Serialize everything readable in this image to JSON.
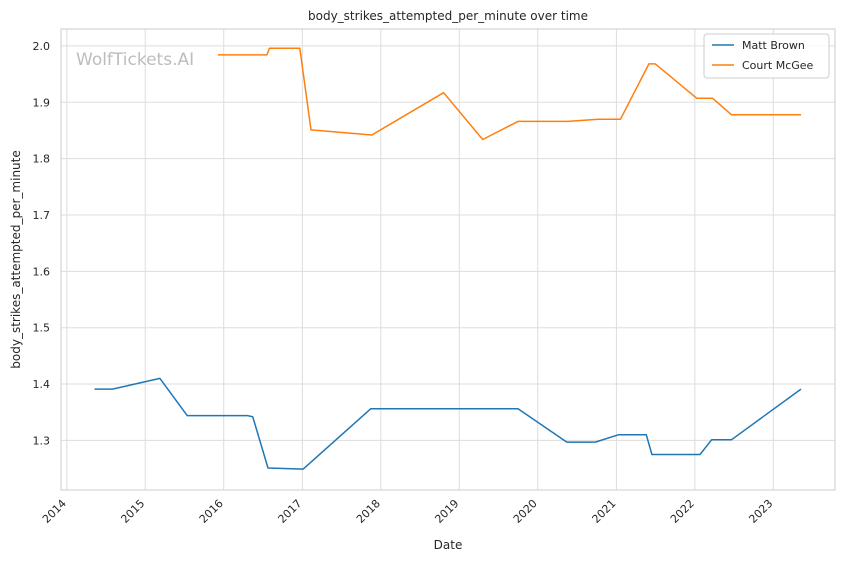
{
  "chart_data": {
    "type": "line",
    "title": "body_strikes_attempted_per_minute over time",
    "xlabel": "Date",
    "ylabel": "body_strikes_attempted_per_minute",
    "watermark": "WolfTickets.AI",
    "x_ticks": [
      "2014",
      "2015",
      "2016",
      "2017",
      "2018",
      "2019",
      "2020",
      "2021",
      "2022",
      "2023"
    ],
    "y_ticks": [
      "1.3",
      "1.4",
      "1.5",
      "1.6",
      "1.7",
      "1.8",
      "1.9",
      "2.0"
    ],
    "xlim": [
      "2013-12-05",
      "2023-10-15"
    ],
    "ylim": [
      1.212,
      2.03
    ],
    "grid": true,
    "legend_position": "top-right",
    "series": [
      {
        "name": "Matt Brown",
        "color": "#1f77b4",
        "points": [
          [
            "2014-05-10",
            1.391
          ],
          [
            "2014-08-01",
            1.391
          ],
          [
            "2015-03-10",
            1.41
          ],
          [
            "2015-07-15",
            1.344
          ],
          [
            "2016-04-20",
            1.344
          ],
          [
            "2016-05-15",
            1.342
          ],
          [
            "2016-07-25",
            1.251
          ],
          [
            "2017-01-05",
            1.249
          ],
          [
            "2017-11-15",
            1.356
          ],
          [
            "2019-10-01",
            1.356
          ],
          [
            "2019-12-10",
            1.338
          ],
          [
            "2020-05-15",
            1.297
          ],
          [
            "2020-09-25",
            1.297
          ],
          [
            "2021-01-10",
            1.31
          ],
          [
            "2021-05-20",
            1.31
          ],
          [
            "2021-06-15",
            1.275
          ],
          [
            "2022-01-25",
            1.275
          ],
          [
            "2022-03-20",
            1.301
          ],
          [
            "2022-06-20",
            1.301
          ],
          [
            "2023-05-10",
            1.391
          ]
        ]
      },
      {
        "name": "Court McGee",
        "color": "#ff7f0e",
        "points": [
          [
            "2015-12-05",
            1.984
          ],
          [
            "2016-07-20",
            1.984
          ],
          [
            "2016-08-01",
            1.996
          ],
          [
            "2016-12-20",
            1.996
          ],
          [
            "2017-02-10",
            1.851
          ],
          [
            "2017-11-20",
            1.842
          ],
          [
            "2018-10-20",
            1.917
          ],
          [
            "2019-04-20",
            1.834
          ],
          [
            "2019-10-01",
            1.866
          ],
          [
            "2020-05-20",
            1.866
          ],
          [
            "2020-10-10",
            1.87
          ],
          [
            "2021-01-20",
            1.87
          ],
          [
            "2021-06-01",
            1.968
          ],
          [
            "2021-07-01",
            1.968
          ],
          [
            "2022-01-10",
            1.907
          ],
          [
            "2022-03-25",
            1.907
          ],
          [
            "2022-06-20",
            1.878
          ],
          [
            "2023-05-10",
            1.878
          ]
        ]
      }
    ]
  }
}
